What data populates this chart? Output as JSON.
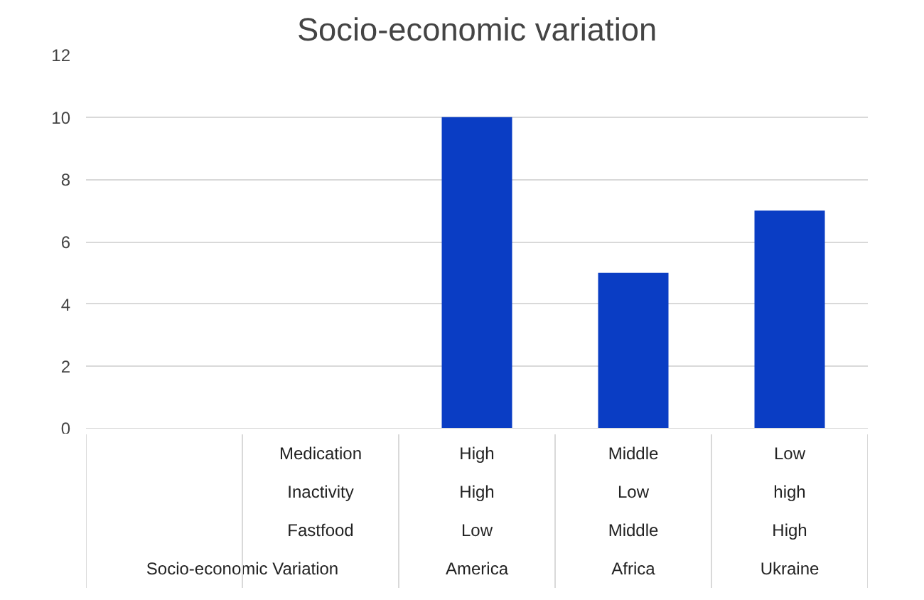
{
  "chart_data": {
    "type": "bar",
    "title": "Socio-economic variation",
    "categories": [
      null,
      null,
      "High\nHigh\nLow\nAmerica",
      "Middle\nLow\nMiddle\nAfrica",
      "Low\nhigh\nHigh\nUkraine"
    ],
    "values": [
      null,
      null,
      10,
      5,
      7
    ],
    "color": "#0a3dc4",
    "ylim": [
      0,
      12
    ],
    "yticks": [
      0,
      2,
      4,
      6,
      8,
      10,
      12
    ],
    "grid": "y",
    "annotations": [
      "Medication",
      "Inactivity",
      "Fastfood",
      "Socio-economic Variation"
    ]
  }
}
